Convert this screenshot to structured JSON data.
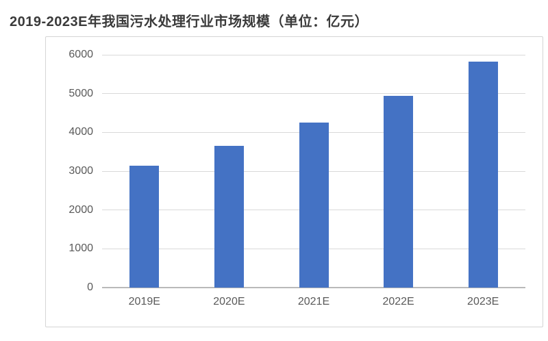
{
  "title": "2019-2023E年我国污水处理行业市场规模（单位：亿元）",
  "chart_data": {
    "type": "bar",
    "title": "2019-2023E年我国污水处理行业市场规模（单位：亿元）",
    "categories": [
      "2019E",
      "2020E",
      "2021E",
      "2022E",
      "2023E"
    ],
    "values": [
      3150,
      3650,
      4250,
      4940,
      5830
    ],
    "xlabel": "",
    "ylabel": "",
    "unit": "亿元",
    "ylim": [
      0,
      6000
    ],
    "yticks": [
      0,
      1000,
      2000,
      3000,
      4000,
      5000,
      6000
    ],
    "grid": true,
    "legend": "none",
    "colors": {
      "bar": "#4472c4",
      "gridline": "#d9d9d9",
      "axis_line": "#b9b9b9",
      "tick_label": "#595959",
      "title": "#3a3a3a",
      "chart_border": "#d5d5d5",
      "background": "#ffffff"
    }
  }
}
